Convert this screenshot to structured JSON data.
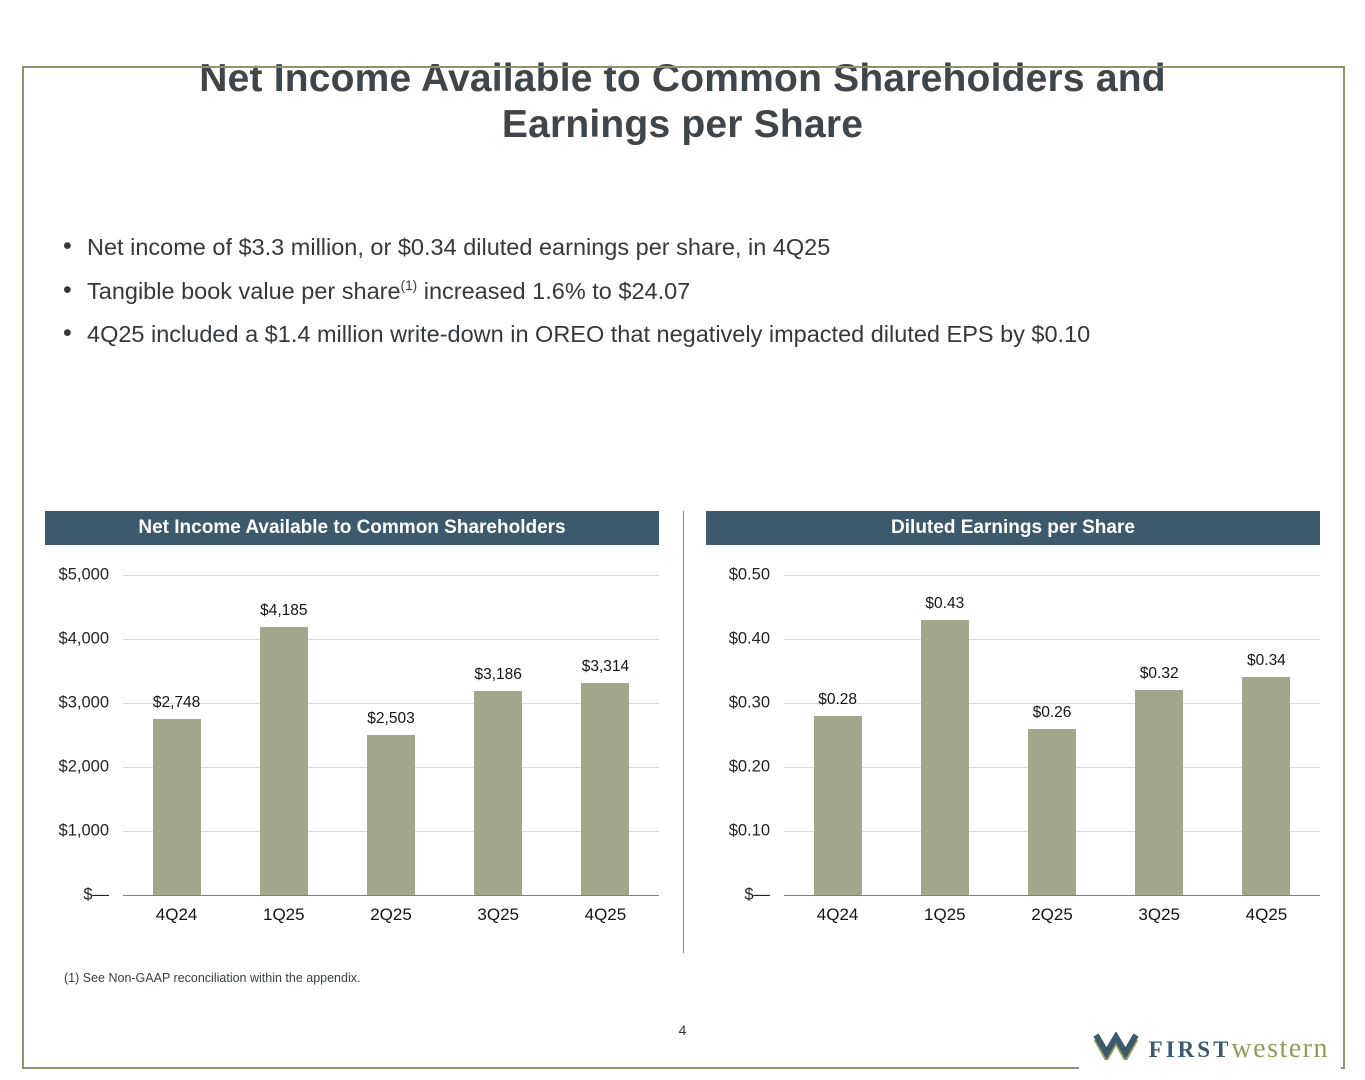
{
  "slide": {
    "title": {
      "line1": "Net Income Available to Common Shareholders and",
      "line2": "Earnings per Share"
    },
    "bullets": [
      {
        "pre": "Net income of $3.3 million, or $0.34 diluted earnings per share, in 4Q25",
        "sup": "",
        "post": ""
      },
      {
        "pre": "Tangible book value per share",
        "sup": "(1)",
        "post": " increased 1.6% to $24.07"
      },
      {
        "pre": "4Q25 included a $1.4 million write-down in OREO that negatively impacted diluted EPS by $0.10",
        "sup": "",
        "post": ""
      }
    ],
    "footnote": "(1) See Non-GAAP reconciliation within the appendix.",
    "page_number": "4",
    "logo": {
      "word1": "FIRST",
      "word2": "western",
      "icon": "w-chevron-mark"
    }
  },
  "colors": {
    "chart_header": "#3d5a6d",
    "bar_fill": "#a2a78c",
    "slide_border": "#8f9470",
    "logo_first": "#3d5a6d",
    "logo_western": "#909c5c",
    "title_text": "#3f4549"
  },
  "chart_data": [
    {
      "type": "bar",
      "title": "Net Income Available to Common Shareholders",
      "categories": [
        "4Q24",
        "1Q25",
        "2Q25",
        "3Q25",
        "4Q25"
      ],
      "values": [
        2748,
        4185,
        2503,
        3186,
        3314
      ],
      "value_labels": [
        "$2,748",
        "$4,185",
        "$2,503",
        "$3,186",
        "$3,314"
      ],
      "y_ticks": [
        "$5,000",
        "$4,000",
        "$3,000",
        "$2,000",
        "$1,000",
        "$—"
      ],
      "ylim": [
        0,
        5000
      ],
      "grid": true,
      "legend": "none",
      "bar_color": "#a2a78c",
      "header_color": "#3d5a6d"
    },
    {
      "type": "bar",
      "title": "Diluted Earnings per Share",
      "categories": [
        "4Q24",
        "1Q25",
        "2Q25",
        "3Q25",
        "4Q25"
      ],
      "values": [
        0.28,
        0.43,
        0.26,
        0.32,
        0.34
      ],
      "value_labels": [
        "$0.28",
        "$0.43",
        "$0.26",
        "$0.32",
        "$0.34"
      ],
      "y_ticks": [
        "$0.50",
        "$0.40",
        "$0.30",
        "$0.20",
        "$0.10",
        "$—"
      ],
      "ylim": [
        0,
        0.5
      ],
      "grid": true,
      "legend": "none",
      "bar_color": "#a2a78c",
      "header_color": "#3d5a6d"
    }
  ]
}
